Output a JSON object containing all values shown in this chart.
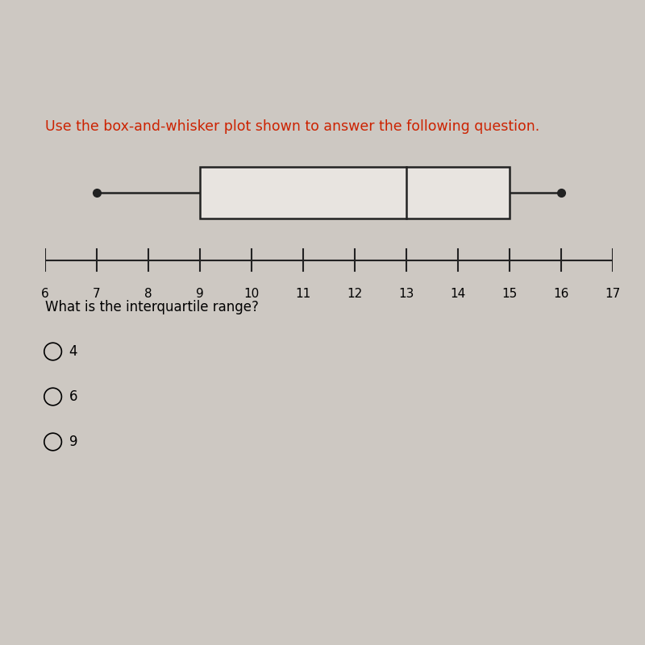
{
  "whisker_min": 7,
  "q1": 9,
  "median": 13,
  "q3": 15,
  "whisker_max": 16,
  "x_min": 6,
  "x_max": 17,
  "x_ticks": [
    6,
    7,
    8,
    9,
    10,
    11,
    12,
    13,
    14,
    15,
    16,
    17
  ],
  "title_text": "Use the box-and-whisker plot shown to answer the following question.",
  "title_color": "#cc2200",
  "title_fontsize": 12.5,
  "question_text": "What is the interquartile range?",
  "question_fontsize": 12,
  "choices": [
    "4",
    "6",
    "9"
  ],
  "bg_color": "#cdc8c2",
  "box_color": "#e8e4e0",
  "box_edge_color": "#222222",
  "line_color": "#222222",
  "dot_color": "#222222",
  "top_bar_color": "#111111",
  "choice_fontsize": 12
}
